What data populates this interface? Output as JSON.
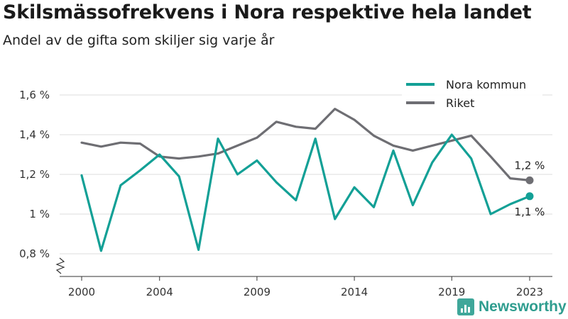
{
  "chart_data": {
    "type": "line",
    "title": "Skilsmässofrekvens i Nora respektive hela landet",
    "subtitle": "Andel av de gifta som skiljer sig varje år",
    "x": [
      2000,
      2001,
      2002,
      2003,
      2004,
      2005,
      2006,
      2007,
      2008,
      2009,
      2010,
      2011,
      2012,
      2013,
      2014,
      2015,
      2016,
      2017,
      2018,
      2019,
      2020,
      2021,
      2022,
      2023
    ],
    "x_ticks": [
      2000,
      2004,
      2009,
      2014,
      2019,
      2023
    ],
    "x_tick_labels": [
      "2000",
      "2004",
      "2009",
      "2014",
      "2019",
      "2023"
    ],
    "y_ticks": [
      0.8,
      1.0,
      1.2,
      1.4,
      1.6
    ],
    "y_tick_labels": [
      "0,8 %",
      "1 %",
      "1,2 %",
      "1,4 %",
      "1,6 %"
    ],
    "ylim": [
      0.72,
      1.64
    ],
    "axis_break": true,
    "grid": "horizontal",
    "legend_position": "top-right",
    "series": [
      {
        "name": "Nora kommun",
        "color": "#13a096",
        "values": [
          1.195,
          0.815,
          1.145,
          1.22,
          1.3,
          1.19,
          0.82,
          1.38,
          1.2,
          1.27,
          1.16,
          1.07,
          1.38,
          0.975,
          1.135,
          1.035,
          1.32,
          1.045,
          1.26,
          1.4,
          1.28,
          1.0,
          1.05,
          1.09
        ],
        "end_label": "1,1 %"
      },
      {
        "name": "Riket",
        "color": "#6e6e73",
        "values": [
          1.36,
          1.34,
          1.36,
          1.355,
          1.29,
          1.28,
          1.29,
          1.305,
          1.345,
          1.385,
          1.465,
          1.44,
          1.43,
          1.53,
          1.475,
          1.395,
          1.345,
          1.32,
          1.345,
          1.37,
          1.395,
          1.29,
          1.18,
          1.17
        ],
        "end_label": "1,2 %"
      }
    ]
  },
  "brand": {
    "name": "Newsworthy",
    "icon": "newsworthy-logo-icon",
    "color": "#2f9d8f"
  }
}
